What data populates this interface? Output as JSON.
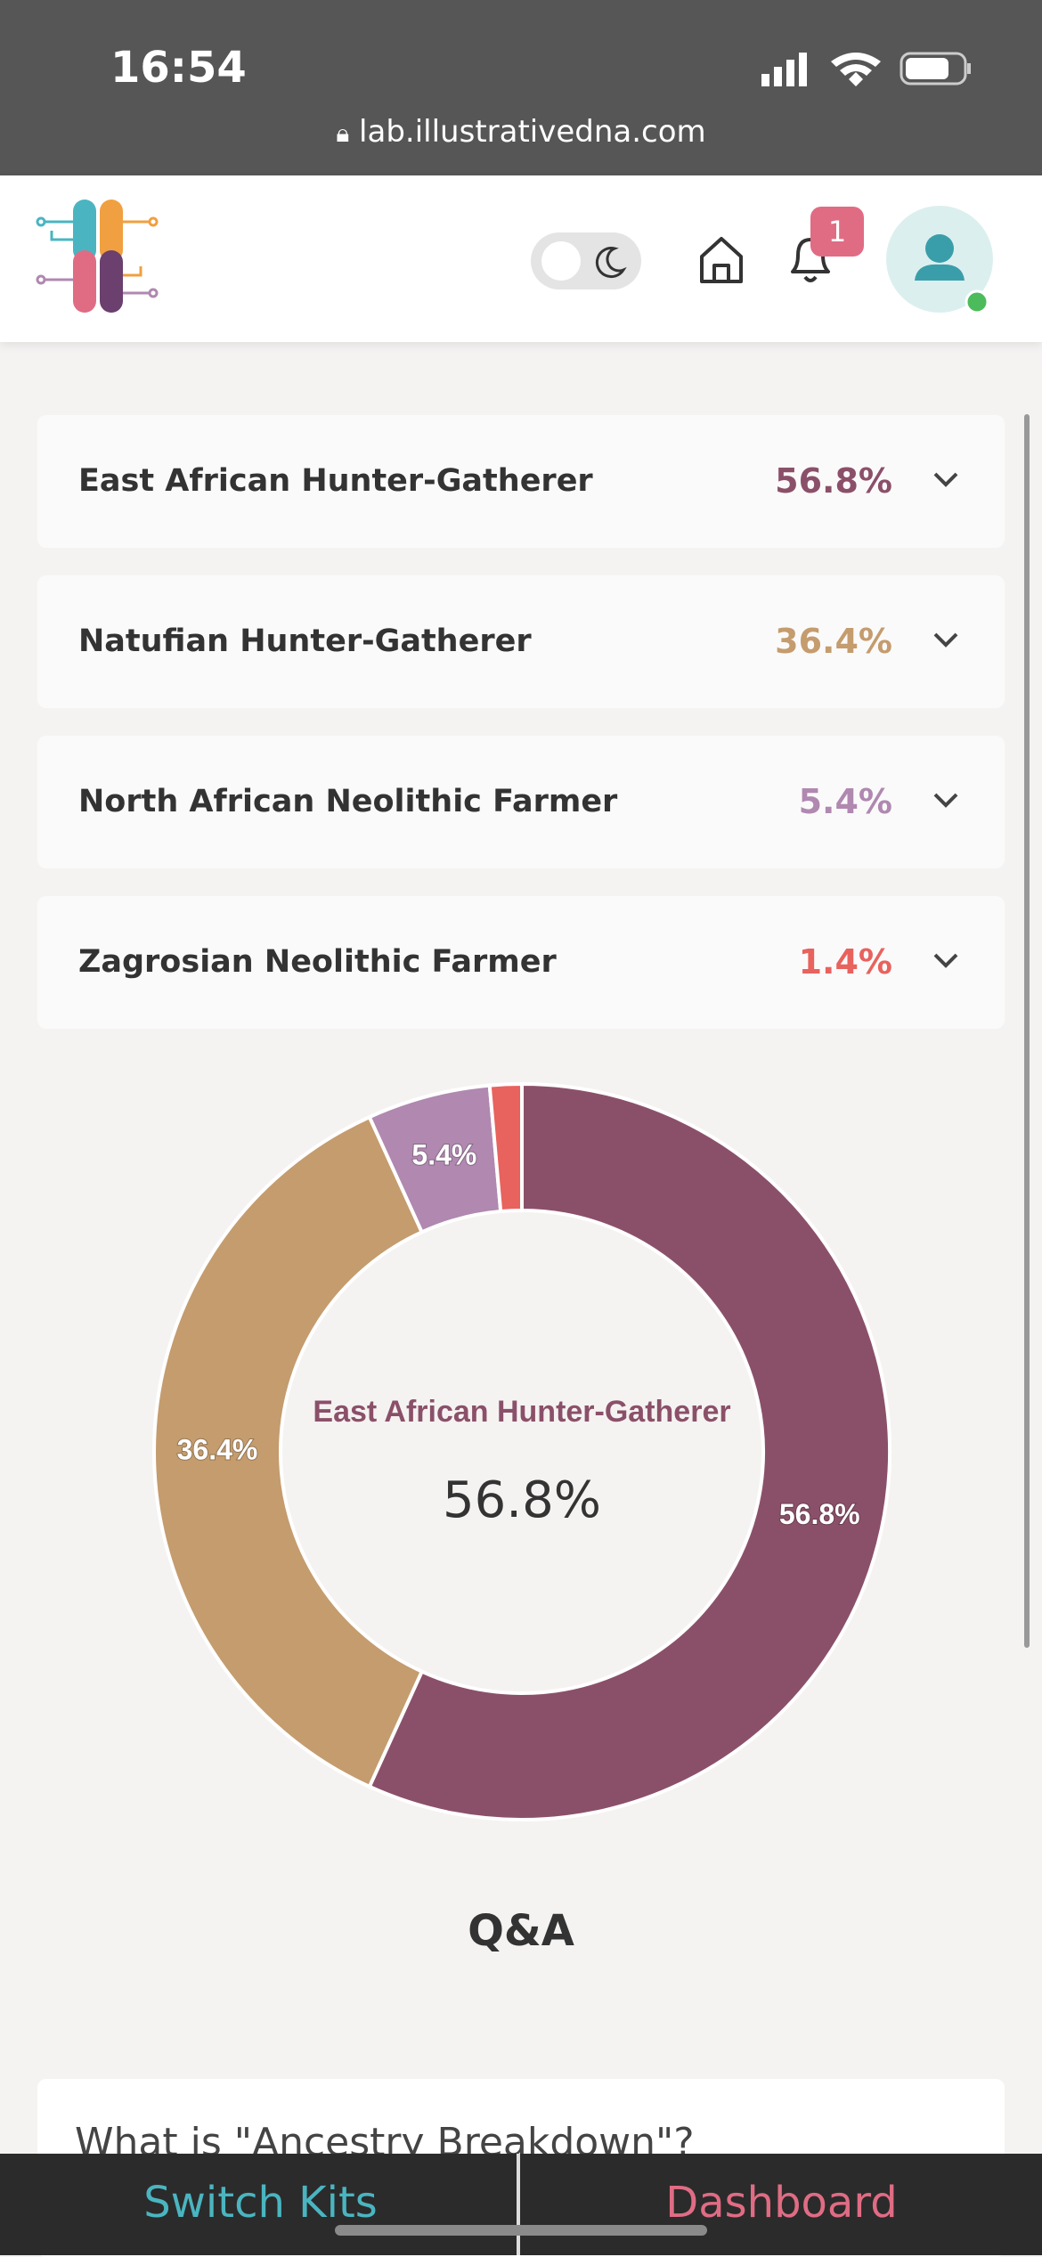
{
  "status_bar": {
    "time": "16:54",
    "url": "lab.illustrativedna.com"
  },
  "header": {
    "notification_count": 1
  },
  "chart_data": {
    "type": "pie",
    "categories": [
      "East African Hunter-Gatherer",
      "Natufian Hunter-Gatherer",
      "North African Neolithic Farmer",
      "Zagrosian Neolithic Farmer"
    ],
    "values": [
      56.8,
      36.4,
      5.4,
      1.4
    ],
    "value_labels": [
      "56.8%",
      "36.4%",
      "5.4%",
      "1.4%"
    ],
    "colors": [
      "#8b5069",
      "#c49c6e",
      "#b088b0",
      "#e8625e"
    ],
    "donut": true
  },
  "qa": {
    "title": "Q&A",
    "question": "What is \"Ancestry Breakdown\"?"
  },
  "footer": {
    "left": "Switch Kits",
    "right": "Dashboard"
  }
}
